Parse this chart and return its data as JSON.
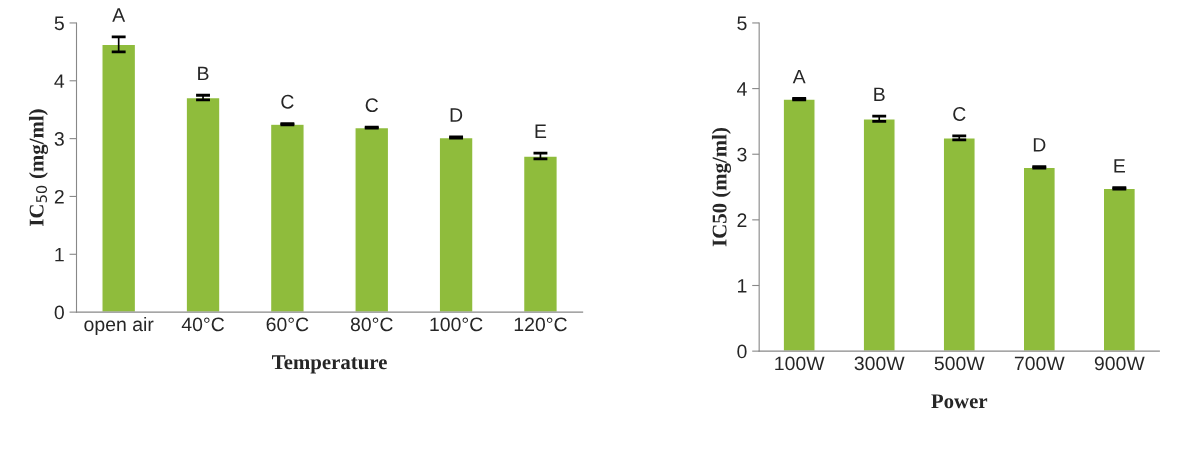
{
  "chart_data": [
    {
      "type": "bar",
      "xlabel": "Temperature",
      "ylabel": "IC$_{50}$ (mg/ml)",
      "categories": [
        "open air",
        "40°C",
        "60°C",
        "80°C",
        "100°C",
        "120°C"
      ],
      "values": [
        4.63,
        3.71,
        3.25,
        3.19,
        3.02,
        2.7
      ],
      "errors": [
        0.13,
        0.04,
        0.01,
        0.01,
        0.01,
        0.05
      ],
      "color": "#8fbc3c",
      "ylim": [
        0,
        5
      ],
      "yticks": [
        0,
        1,
        2,
        3,
        4,
        5
      ],
      "grid": false,
      "annotations": [
        {
          "text": "A",
          "x": "open air",
          "y": 4.76
        },
        {
          "text": "B",
          "x": "40°C",
          "y": 3.75
        },
        {
          "text": "C",
          "x": "60°C",
          "y": 3.26
        },
        {
          "text": "C",
          "x": "80°C",
          "y": 3.2
        },
        {
          "text": "D",
          "x": "100°C",
          "y": 3.03
        },
        {
          "text": "E",
          "x": "120°C",
          "y": 2.75
        }
      ]
    },
    {
      "type": "bar",
      "xlabel": "Power",
      "ylabel": "IC50 (mg/ml)",
      "categories": [
        "100W",
        "300W",
        "500W",
        "700W",
        "900W"
      ],
      "values": [
        3.84,
        3.54,
        3.25,
        2.8,
        2.48
      ],
      "errors": [
        0.01,
        0.04,
        0.03,
        0.01,
        0.01
      ],
      "color": "#8fbc3c",
      "ylim": [
        0,
        5
      ],
      "yticks": [
        0,
        1,
        2,
        3,
        4,
        5
      ],
      "grid": false,
      "annotations": [
        {
          "text": "A",
          "x": "100W",
          "y": 3.85
        },
        {
          "text": "B",
          "x": "300W",
          "y": 3.58
        },
        {
          "text": "C",
          "x": "500W",
          "y": 3.28
        },
        {
          "text": "D",
          "x": "700W",
          "y": 2.81
        },
        {
          "text": "E",
          "x": "900W",
          "y": 2.49
        }
      ]
    }
  ]
}
